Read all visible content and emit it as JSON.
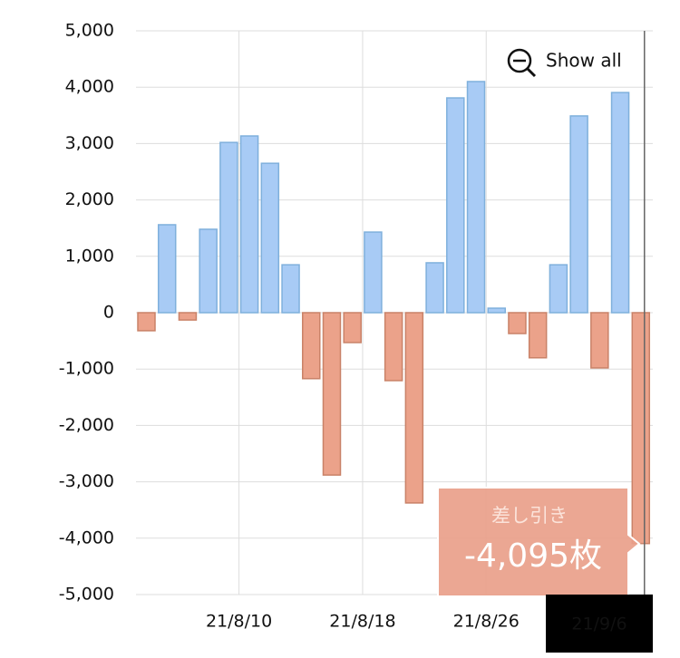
{
  "chart_data": {
    "type": "bar",
    "categories": [
      null,
      null,
      null,
      null,
      null,
      "21/8/10",
      null,
      null,
      null,
      null,
      null,
      "21/8/18",
      null,
      null,
      null,
      null,
      null,
      "21/8/26",
      null,
      null,
      null,
      null,
      null,
      null,
      "21/9/6"
    ],
    "values": [
      -320,
      1560,
      -130,
      1480,
      3020,
      3135,
      2650,
      850,
      -1170,
      -2880,
      -530,
      1430,
      -1205,
      -3375,
      885,
      3810,
      4100,
      80,
      -370,
      -800,
      850,
      3490,
      -980,
      3905,
      -4095
    ],
    "positive_color": "#a8cbf5",
    "negative_color": "#eba28a",
    "ylim": [
      -5000,
      5000
    ],
    "yticks": [
      {
        "value": -5000,
        "label": "-5,000"
      },
      {
        "value": -4000,
        "label": "-4,000"
      },
      {
        "value": -3000,
        "label": "-3,000"
      },
      {
        "value": -2000,
        "label": "-2,000"
      },
      {
        "value": -1000,
        "label": "-1,000"
      },
      0,
      {
        "value": 1000,
        "label": "1,000"
      },
      {
        "value": 2000,
        "label": "2,000"
      },
      {
        "value": 3000,
        "label": "3,000"
      },
      {
        "value": 4000,
        "label": "4,000"
      },
      {
        "value": 5000,
        "label": "5,000"
      }
    ],
    "grid": true,
    "button": "Show all",
    "tooltip": {
      "label": "差し引き",
      "value_label": "-4,095枚",
      "index": 24
    }
  }
}
